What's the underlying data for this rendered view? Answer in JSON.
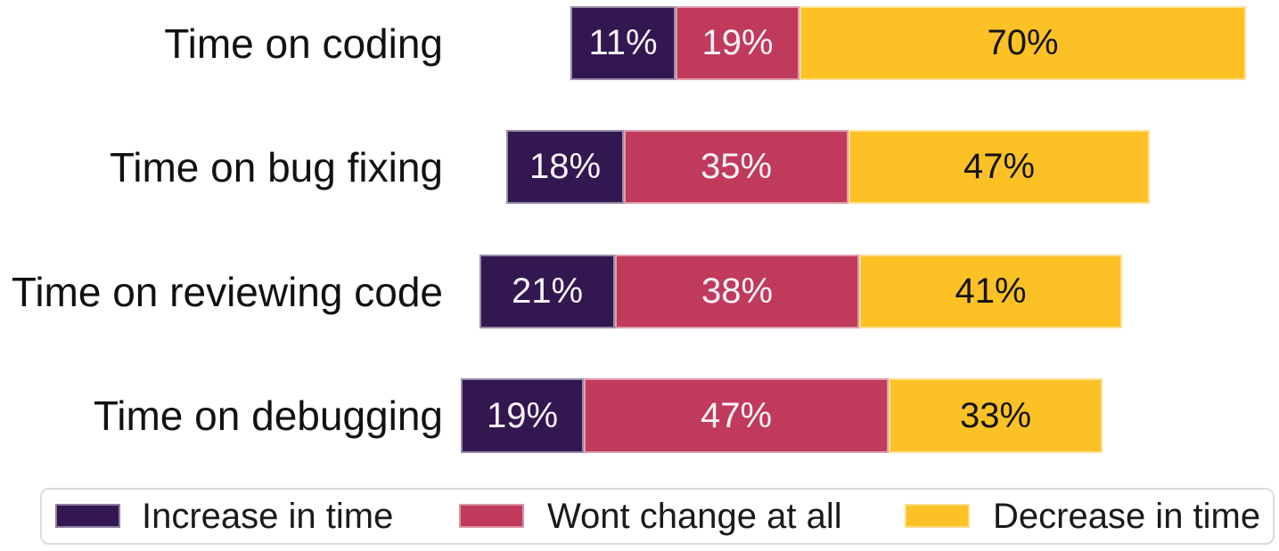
{
  "chart_data": {
    "type": "bar",
    "orientation": "horizontal",
    "stacked": true,
    "units": "percent",
    "title": "",
    "xlabel": "",
    "ylabel": "",
    "grid": false,
    "axes_hidden": true,
    "legend_position": "bottom",
    "categories": [
      "Time on coding",
      "Time on bug fixing",
      "Time on reviewing code",
      "Time on debugging"
    ],
    "series": [
      {
        "name": "Increase in time",
        "color": "#321750",
        "values": [
          11,
          18,
          21,
          19
        ]
      },
      {
        "name": "Wont change at all",
        "color": "#c03a5c",
        "values": [
          19,
          35,
          38,
          47
        ]
      },
      {
        "name": "Decrease in time",
        "color": "#fcc125",
        "values": [
          70,
          47,
          41,
          33
        ]
      }
    ],
    "data_labels": [
      [
        "11%",
        "19%",
        "70%"
      ],
      [
        "18%",
        "35%",
        "47%"
      ],
      [
        "21%",
        "38%",
        "41%"
      ],
      [
        "19%",
        "47%",
        "33%"
      ]
    ]
  },
  "legend": {
    "items": [
      {
        "label": "Increase in time"
      },
      {
        "label": "Wont change at all"
      },
      {
        "label": "Decrease in time"
      }
    ]
  }
}
